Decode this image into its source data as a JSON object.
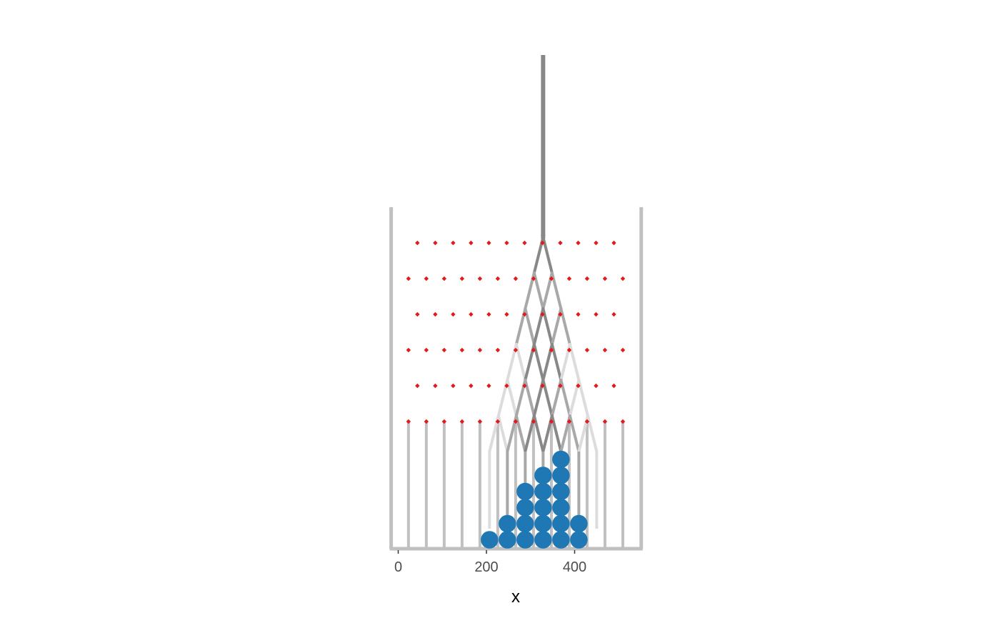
{
  "chart_data": {
    "type": "scatter",
    "description_type": "galton-board-dotplot",
    "xlabel": "x",
    "xlim": [
      -16,
      552
    ],
    "x_ticks": [
      0,
      200,
      400
    ],
    "x_tick_labels": [
      "0",
      "200",
      "400"
    ],
    "grid": false,
    "legend": "none",
    "colors": {
      "ball": "#1f78b4",
      "peg": "#e31a1c",
      "frame": "#c0c0c0",
      "path_dark": "#888888",
      "path_mid": "#a8a8a8",
      "path_light": "#dcdcdc"
    },
    "ball_spacing": 40.5,
    "stacks": [
      {
        "x": 207,
        "count": 1
      },
      {
        "x": 247.5,
        "count": 2
      },
      {
        "x": 288,
        "count": 4
      },
      {
        "x": 328.5,
        "count": 5
      },
      {
        "x": 369,
        "count": 6
      },
      {
        "x": 409.5,
        "count": 2
      }
    ],
    "peg_rows": [
      {
        "start": 43.5,
        "count": 12
      },
      {
        "start": 23.25,
        "count": 13
      },
      {
        "start": 43.5,
        "count": 12
      },
      {
        "start": 23.25,
        "count": 13
      },
      {
        "start": 43.5,
        "count": 12
      },
      {
        "start": 23.25,
        "count": 13
      }
    ],
    "peg_spacing": 40.5,
    "bin_divider_x": [
      23.25,
      63.75,
      104.25,
      144.75,
      185.25,
      225.75,
      266.25,
      306.75,
      347.25,
      387.75,
      428.25,
      468.75,
      509.25
    ],
    "frame_x": [
      -16,
      551
    ],
    "drop_x": 328.5
  }
}
